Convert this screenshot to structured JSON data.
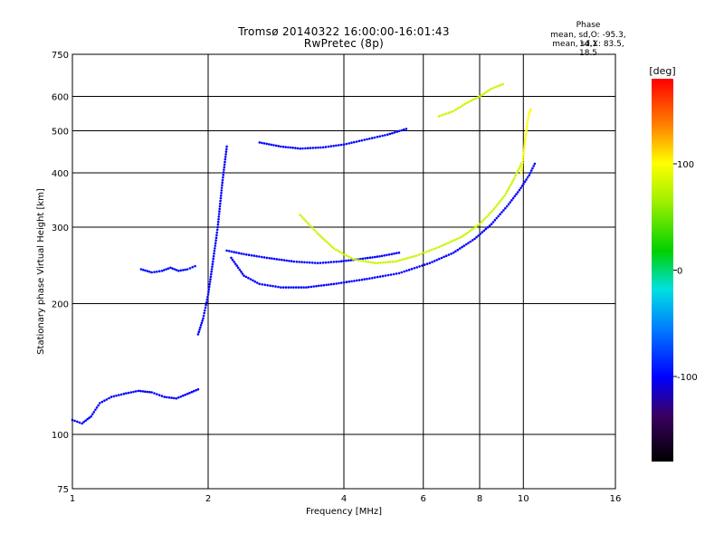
{
  "header": {
    "title_line1": "Tromsø 20140322 16:00:00-16:01:43",
    "title_line2": "RwPretec (8p)",
    "phase_title": "Phase",
    "phase_o": "mean, sd,O: -95.3, 14.1",
    "phase_x": "mean, sd,X:  83.5, 18.5"
  },
  "colorbar": {
    "unit_label": "[deg]",
    "ticks": [
      "100",
      "0",
      "-100"
    ],
    "tick_values": [
      100,
      0,
      -100
    ],
    "range": [
      -180,
      180
    ]
  },
  "chart_data": {
    "type": "scatter",
    "title": "Tromsø 20140322 16:00:00-16:01:43",
    "subtitle": "RwPretec (8p)",
    "xlabel": "Frequency [MHz]",
    "ylabel": "Stationary phase Virtual Height [km]",
    "xscale": "log",
    "yscale": "log",
    "xlim": [
      1,
      16
    ],
    "ylim": [
      75,
      750
    ],
    "xticks": [
      1,
      2,
      4,
      6,
      8,
      10,
      16
    ],
    "xtick_labels": [
      "1",
      "2",
      "4",
      "6",
      "8",
      "10",
      "16"
    ],
    "yticks": [
      75,
      100,
      200,
      300,
      400,
      500,
      600,
      750
    ],
    "ytick_labels": [
      "75",
      "100",
      "200",
      "300",
      "400",
      "500",
      "600",
      "750"
    ],
    "grid": true,
    "color_by": "phase",
    "traces": [
      {
        "x": [
          1.0,
          1.05,
          1.1,
          1.15,
          1.22,
          1.3,
          1.4,
          1.5,
          1.6,
          1.7,
          1.8,
          1.9
        ],
        "y": [
          108,
          106,
          110,
          118,
          122,
          124,
          126,
          125,
          122,
          121,
          124,
          127
        ],
        "phase": -100
      },
      {
        "x": [
          1.42,
          1.5,
          1.58,
          1.65,
          1.72,
          1.8,
          1.87
        ],
        "y": [
          240,
          236,
          238,
          242,
          238,
          240,
          244
        ],
        "phase": -95
      },
      {
        "x": [
          1.9,
          1.95,
          2.0,
          2.05,
          2.1,
          2.15,
          2.2
        ],
        "y": [
          170,
          185,
          210,
          250,
          300,
          380,
          460
        ],
        "phase": -100
      },
      {
        "x": [
          2.25,
          2.4,
          2.6,
          2.9,
          3.3,
          3.8,
          4.5,
          5.3,
          6.2,
          7.0,
          7.8,
          8.5,
          9.2,
          9.8,
          10.3,
          10.6
        ],
        "y": [
          255,
          232,
          222,
          218,
          218,
          222,
          228,
          235,
          248,
          262,
          282,
          305,
          335,
          365,
          395,
          420
        ],
        "phase": -100
      },
      {
        "x": [
          2.2,
          2.4,
          2.7,
          3.1,
          3.5,
          3.9,
          4.3,
          4.8,
          5.3
        ],
        "y": [
          265,
          260,
          255,
          250,
          248,
          250,
          253,
          257,
          262
        ],
        "phase": -100
      },
      {
        "x": [
          3.2,
          3.5,
          3.8,
          4.2,
          4.7,
          5.2,
          5.8,
          6.5,
          7.3,
          8.0,
          8.6,
          9.1,
          9.5,
          9.9
        ],
        "y": [
          320,
          290,
          268,
          253,
          248,
          250,
          258,
          270,
          285,
          305,
          330,
          355,
          385,
          420
        ],
        "phase": 80
      },
      {
        "x": [
          2.6,
          2.9,
          3.2,
          3.6,
          4.0,
          4.5,
          5.0,
          5.5
        ],
        "y": [
          470,
          460,
          455,
          458,
          465,
          478,
          490,
          505
        ],
        "phase": -100
      },
      {
        "x": [
          6.5,
          7.0,
          7.5,
          8.0,
          8.5,
          9.0
        ],
        "y": [
          540,
          555,
          580,
          600,
          625,
          640
        ],
        "phase": 80
      },
      {
        "x": [
          9.9,
          10.0,
          10.1,
          10.2,
          10.3,
          10.4
        ],
        "y": [
          400,
          440,
          480,
          520,
          550,
          560
        ],
        "phase": 100
      }
    ],
    "colorbar_label": "[deg]",
    "colorbar_range": [
      -180,
      180
    ]
  }
}
